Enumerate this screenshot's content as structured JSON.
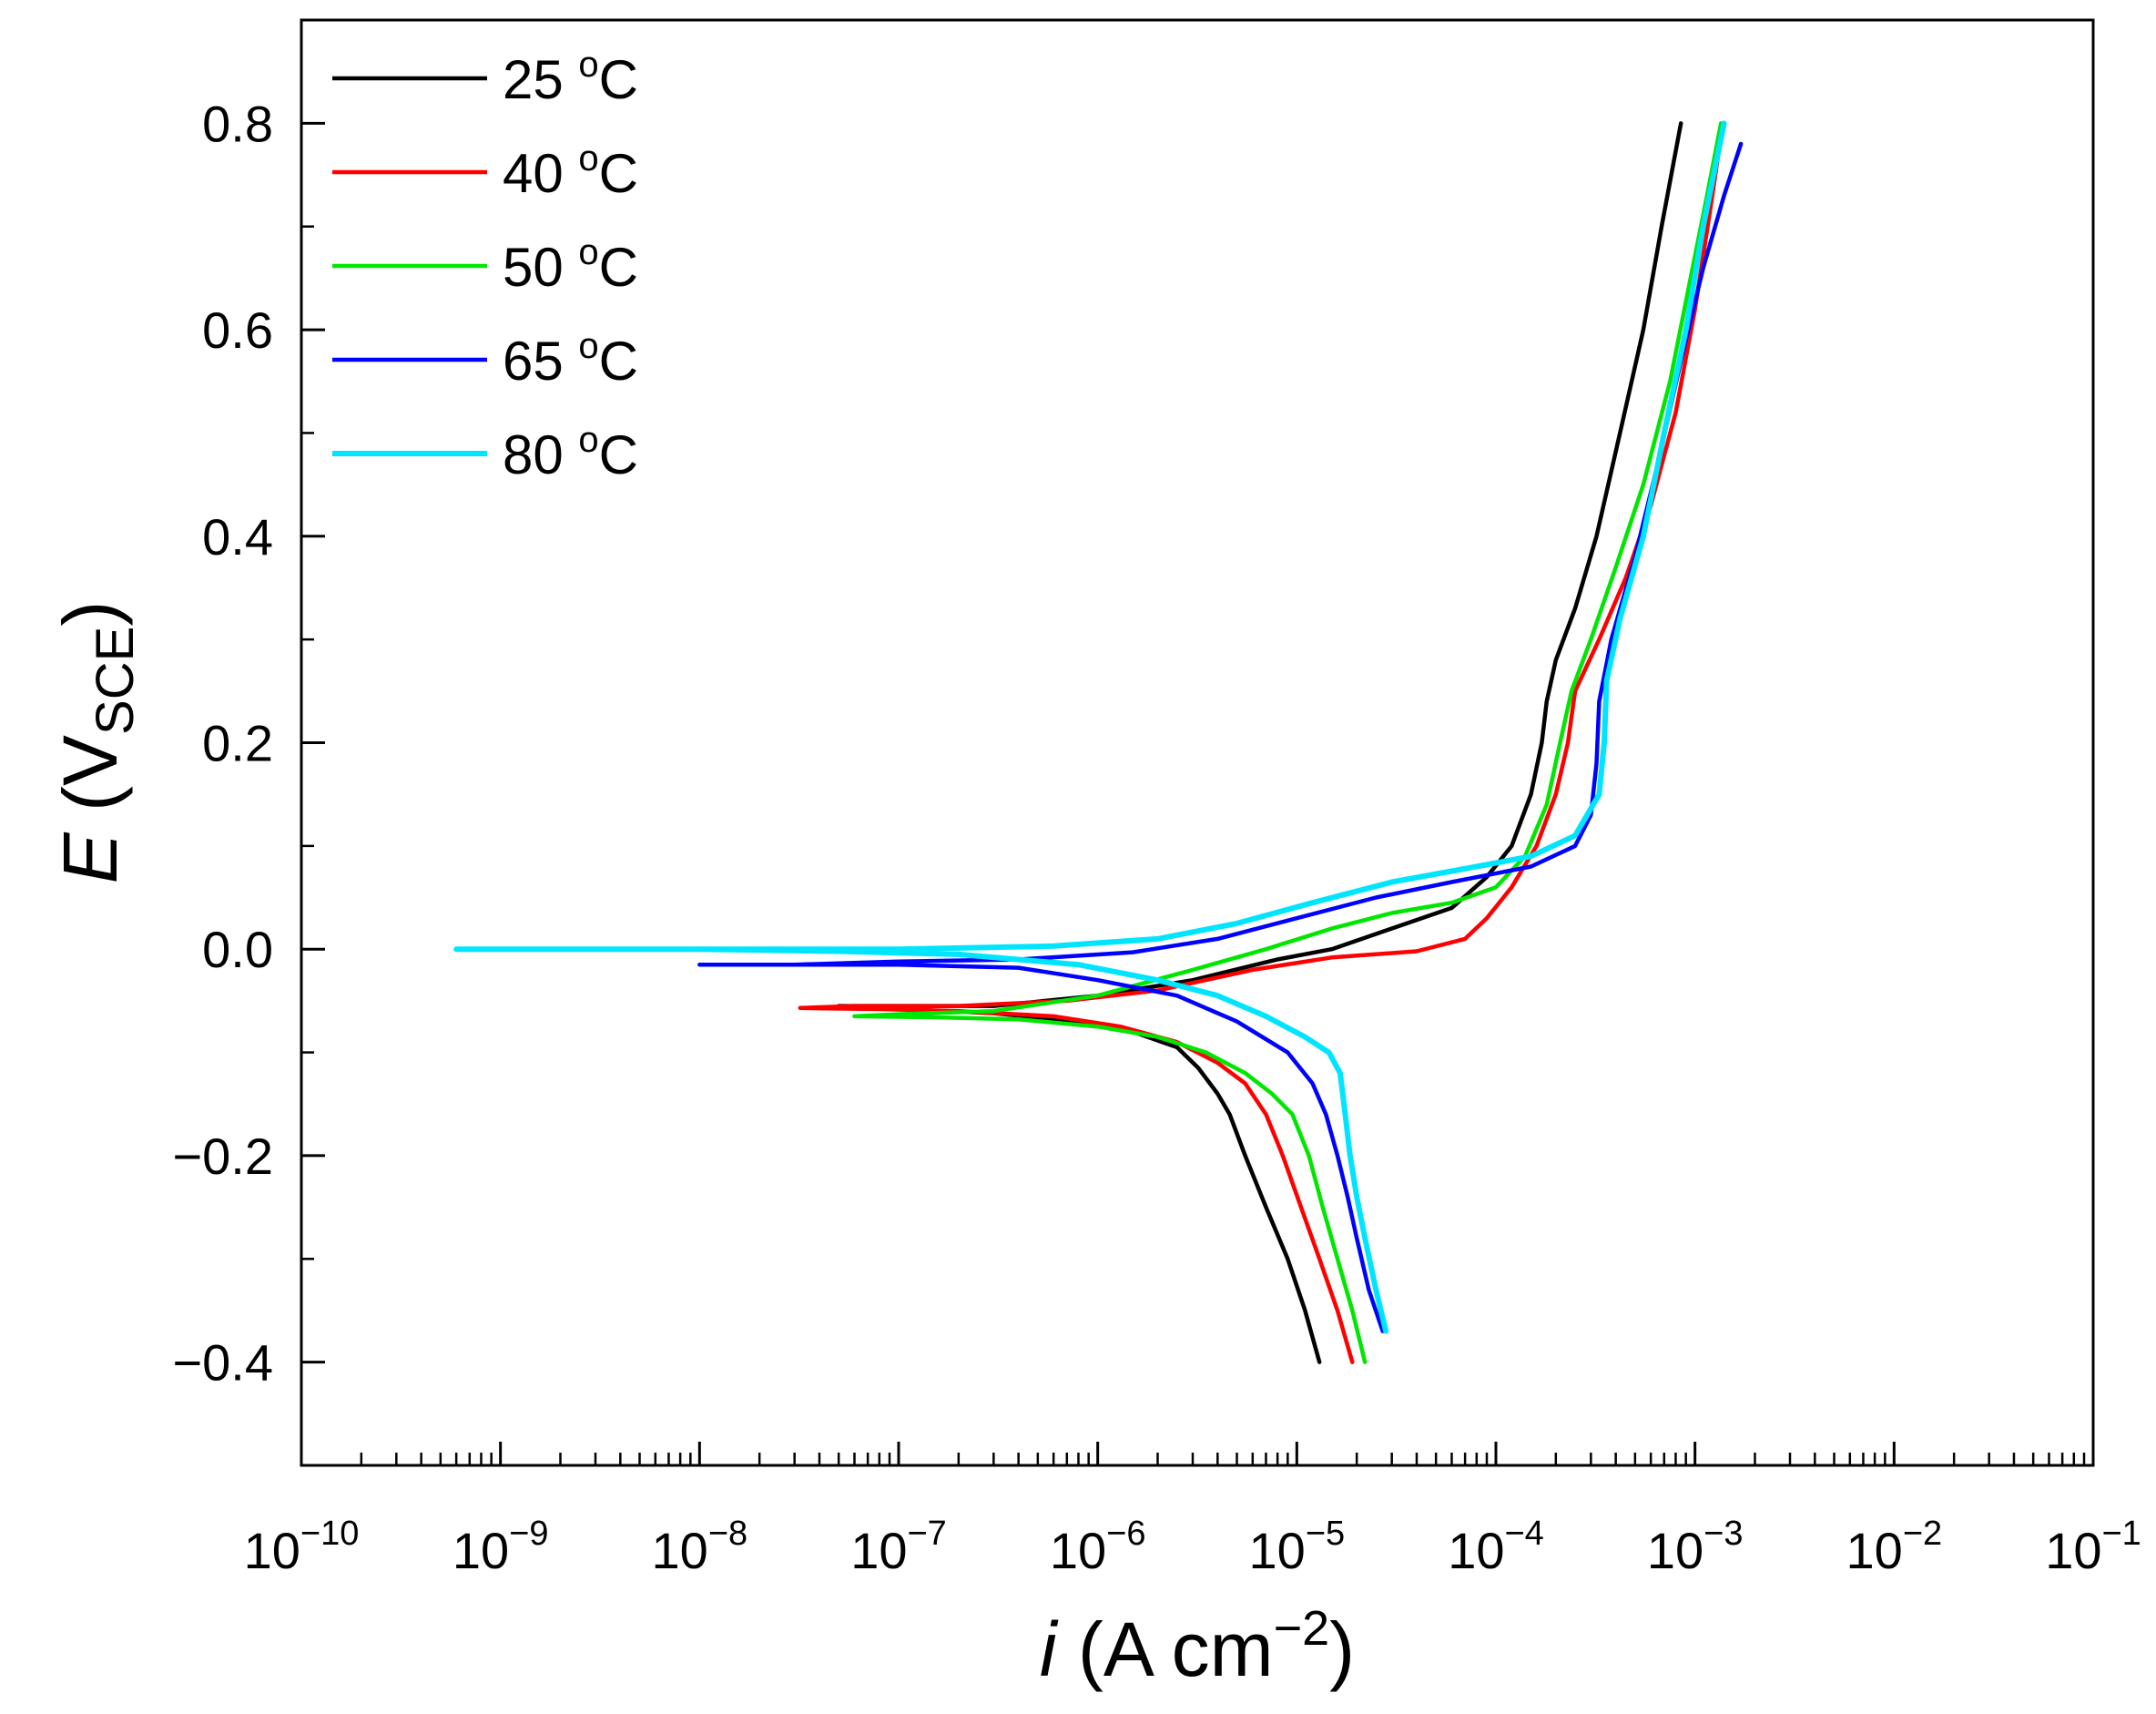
{
  "chart_data": {
    "type": "line",
    "title": "",
    "xlabel": {
      "italic": "i",
      "text": " (A cm",
      "sup": "−2",
      "close": ")"
    },
    "ylabel": {
      "italic": "E",
      "text": " (V",
      "sub": "SCE",
      "close": ")"
    },
    "x_scale": "log",
    "xlim": [
      1e-10,
      0.1
    ],
    "ylim": [
      -0.5,
      0.9
    ],
    "x_ticks": [
      {
        "exp": "−10"
      },
      {
        "exp": "−9"
      },
      {
        "exp": "−8"
      },
      {
        "exp": "−7"
      },
      {
        "exp": "−6"
      },
      {
        "exp": "−5"
      },
      {
        "exp": "−4"
      },
      {
        "exp": "−3"
      },
      {
        "exp": "−2"
      },
      {
        "exp": "−1"
      }
    ],
    "x_tick_base": "10",
    "y_ticks": [
      "−0.4",
      "−0.2",
      "0.0",
      "0.2",
      "0.4",
      "0.6",
      "0.8"
    ],
    "y_tick_values": [
      -0.4,
      -0.2,
      0.0,
      0.2,
      0.4,
      0.6,
      0.8
    ],
    "legend_position": "top-left",
    "series": [
      {
        "name": "25 °C",
        "label_num": "25 ",
        "label_deg": "o",
        "label_unit": "C",
        "color": "#000000",
        "points": [
          [
            1.3e-05,
            -0.4
          ],
          [
            1.1e-05,
            -0.35
          ],
          [
            9e-06,
            -0.3
          ],
          [
            7e-06,
            -0.25
          ],
          [
            5.5e-06,
            -0.2
          ],
          [
            4.6e-06,
            -0.16
          ],
          [
            4e-06,
            -0.14
          ],
          [
            3.2e-06,
            -0.115
          ],
          [
            2.5e-06,
            -0.095
          ],
          [
            1.5e-06,
            -0.08
          ],
          [
            8e-07,
            -0.07
          ],
          [
            3e-07,
            -0.062
          ],
          [
            1e-07,
            -0.058
          ],
          [
            5e-08,
            -0.055
          ],
          [
            1e-07,
            -0.055
          ],
          [
            3e-07,
            -0.055
          ],
          [
            1e-06,
            -0.045
          ],
          [
            3e-06,
            -0.03
          ],
          [
            8e-06,
            -0.01
          ],
          [
            1.5e-05,
            0.0
          ],
          [
            3e-05,
            0.02
          ],
          [
            6e-05,
            0.04
          ],
          [
            9e-05,
            0.07
          ],
          [
            0.00012,
            0.1
          ],
          [
            0.00015,
            0.15
          ],
          [
            0.00017,
            0.2
          ],
          [
            0.00018,
            0.24
          ],
          [
            0.0002,
            0.28
          ],
          [
            0.00025,
            0.33
          ],
          [
            0.00032,
            0.4
          ],
          [
            0.00042,
            0.5
          ],
          [
            0.00055,
            0.6
          ],
          [
            0.00068,
            0.7
          ],
          [
            0.00085,
            0.8
          ]
        ]
      },
      {
        "name": "40 °C",
        "label_num": "40 ",
        "label_deg": "o",
        "label_unit": "C",
        "color": "#ff0000",
        "points": [
          [
            1.9e-05,
            -0.4
          ],
          [
            1.6e-05,
            -0.35
          ],
          [
            1.3e-05,
            -0.3
          ],
          [
            1.05e-05,
            -0.25
          ],
          [
            8.5e-06,
            -0.2
          ],
          [
            7e-06,
            -0.16
          ],
          [
            5.5e-06,
            -0.13
          ],
          [
            4e-06,
            -0.11
          ],
          [
            2.5e-06,
            -0.09
          ],
          [
            1.3e-06,
            -0.075
          ],
          [
            6e-07,
            -0.065
          ],
          [
            2e-07,
            -0.06
          ],
          [
            8e-08,
            -0.058
          ],
          [
            3.2e-08,
            -0.057
          ],
          [
            6e-08,
            -0.055
          ],
          [
            2e-07,
            -0.055
          ],
          [
            7e-07,
            -0.05
          ],
          [
            2e-06,
            -0.04
          ],
          [
            6e-06,
            -0.02
          ],
          [
            1.5e-05,
            -0.008
          ],
          [
            4e-05,
            -0.002
          ],
          [
            7e-05,
            0.01
          ],
          [
            9e-05,
            0.03
          ],
          [
            0.00012,
            0.06
          ],
          [
            0.00016,
            0.1
          ],
          [
            0.0002,
            0.15
          ],
          [
            0.00023,
            0.2
          ],
          [
            0.00025,
            0.25
          ],
          [
            0.00033,
            0.3
          ],
          [
            0.00045,
            0.36
          ],
          [
            0.0006,
            0.43
          ],
          [
            0.0008,
            0.52
          ],
          [
            0.001,
            0.62
          ],
          [
            0.0012,
            0.72
          ],
          [
            0.00138,
            0.8
          ]
        ]
      },
      {
        "name": "50 °C",
        "label_num": "50 ",
        "label_deg": "o",
        "label_unit": "C",
        "color": "#00e600",
        "points": [
          [
            2.2e-05,
            -0.4
          ],
          [
            1.9e-05,
            -0.35
          ],
          [
            1.6e-05,
            -0.3
          ],
          [
            1.35e-05,
            -0.25
          ],
          [
            1.15e-05,
            -0.2
          ],
          [
            9.5e-06,
            -0.16
          ],
          [
            7.5e-06,
            -0.14
          ],
          [
            5.5e-06,
            -0.12
          ],
          [
            3.5e-06,
            -0.1
          ],
          [
            2e-06,
            -0.085
          ],
          [
            1e-06,
            -0.075
          ],
          [
            4e-07,
            -0.068
          ],
          [
            1.5e-07,
            -0.066
          ],
          [
            6e-08,
            -0.065
          ],
          [
            1e-07,
            -0.063
          ],
          [
            3e-07,
            -0.06
          ],
          [
            1e-06,
            -0.045
          ],
          [
            3e-06,
            -0.02
          ],
          [
            7e-06,
            0.0
          ],
          [
            1.5e-05,
            0.02
          ],
          [
            3e-05,
            0.035
          ],
          [
            6e-05,
            0.045
          ],
          [
            0.0001,
            0.06
          ],
          [
            0.00014,
            0.09
          ],
          [
            0.00018,
            0.14
          ],
          [
            0.00021,
            0.2
          ],
          [
            0.00024,
            0.25
          ],
          [
            0.0003,
            0.3
          ],
          [
            0.0004,
            0.37
          ],
          [
            0.00055,
            0.45
          ],
          [
            0.00075,
            0.55
          ],
          [
            0.00095,
            0.65
          ],
          [
            0.00115,
            0.73
          ],
          [
            0.00135,
            0.8
          ]
        ]
      },
      {
        "name": "65 °C",
        "label_num": "65 ",
        "label_deg": "o",
        "label_unit": "C",
        "color": "#0000ff",
        "points": [
          [
            2.7e-05,
            -0.37
          ],
          [
            2.3e-05,
            -0.33
          ],
          [
            2e-05,
            -0.28
          ],
          [
            1.8e-05,
            -0.24
          ],
          [
            1.6e-05,
            -0.2
          ],
          [
            1.4e-05,
            -0.16
          ],
          [
            1.2e-05,
            -0.13
          ],
          [
            9e-06,
            -0.1
          ],
          [
            5e-06,
            -0.07
          ],
          [
            2.5e-06,
            -0.045
          ],
          [
            1e-06,
            -0.03
          ],
          [
            4e-07,
            -0.018
          ],
          [
            1e-07,
            -0.015
          ],
          [
            3e-08,
            -0.015
          ],
          [
            1e-08,
            -0.015
          ],
          [
            3e-08,
            -0.015
          ],
          [
            1e-07,
            -0.012
          ],
          [
            4e-07,
            -0.01
          ],
          [
            1.5e-06,
            -0.003
          ],
          [
            4e-06,
            0.01
          ],
          [
            1e-05,
            0.03
          ],
          [
            2.5e-05,
            0.05
          ],
          [
            6e-05,
            0.065
          ],
          [
            0.00015,
            0.08
          ],
          [
            0.00025,
            0.1
          ],
          [
            0.0003,
            0.13
          ],
          [
            0.00032,
            0.18
          ],
          [
            0.00033,
            0.24
          ],
          [
            0.00038,
            0.3
          ],
          [
            0.0005,
            0.38
          ],
          [
            0.00065,
            0.47
          ],
          [
            0.00085,
            0.57
          ],
          [
            0.0011,
            0.66
          ],
          [
            0.0014,
            0.73
          ],
          [
            0.0017,
            0.78
          ]
        ]
      },
      {
        "name": "80 °C",
        "label_num": "80 ",
        "label_deg": "o",
        "label_unit": "C",
        "color": "#00e5ff",
        "points": [
          [
            2.8e-05,
            -0.37
          ],
          [
            2.5e-05,
            -0.33
          ],
          [
            2.2e-05,
            -0.28
          ],
          [
            2e-05,
            -0.24
          ],
          [
            1.85e-05,
            -0.2
          ],
          [
            1.75e-05,
            -0.16
          ],
          [
            1.65e-05,
            -0.12
          ],
          [
            1.45e-05,
            -0.1
          ],
          [
            1.1e-05,
            -0.085
          ],
          [
            7e-06,
            -0.065
          ],
          [
            4e-06,
            -0.045
          ],
          [
            2e-06,
            -0.03
          ],
          [
            8e-07,
            -0.015
          ],
          [
            2e-07,
            -0.005
          ],
          [
            5e-08,
            -0.002
          ],
          [
            1e-08,
            0.0
          ],
          [
            2e-09,
            0.0
          ],
          [
            6e-10,
            0.0
          ],
          [
            2e-09,
            0.0
          ],
          [
            1e-08,
            0.0
          ],
          [
            1e-07,
            0.0
          ],
          [
            6e-07,
            0.003
          ],
          [
            2e-06,
            0.01
          ],
          [
            5e-06,
            0.025
          ],
          [
            1.2e-05,
            0.045
          ],
          [
            3e-05,
            0.065
          ],
          [
            8e-05,
            0.08
          ],
          [
            0.00015,
            0.09
          ],
          [
            0.00025,
            0.11
          ],
          [
            0.00033,
            0.15
          ],
          [
            0.00035,
            0.2
          ],
          [
            0.00036,
            0.26
          ],
          [
            0.00042,
            0.32
          ],
          [
            0.00055,
            0.4
          ],
          [
            0.0007,
            0.5
          ],
          [
            0.0009,
            0.6
          ],
          [
            0.0011,
            0.7
          ],
          [
            0.0014,
            0.8
          ]
        ]
      }
    ]
  }
}
